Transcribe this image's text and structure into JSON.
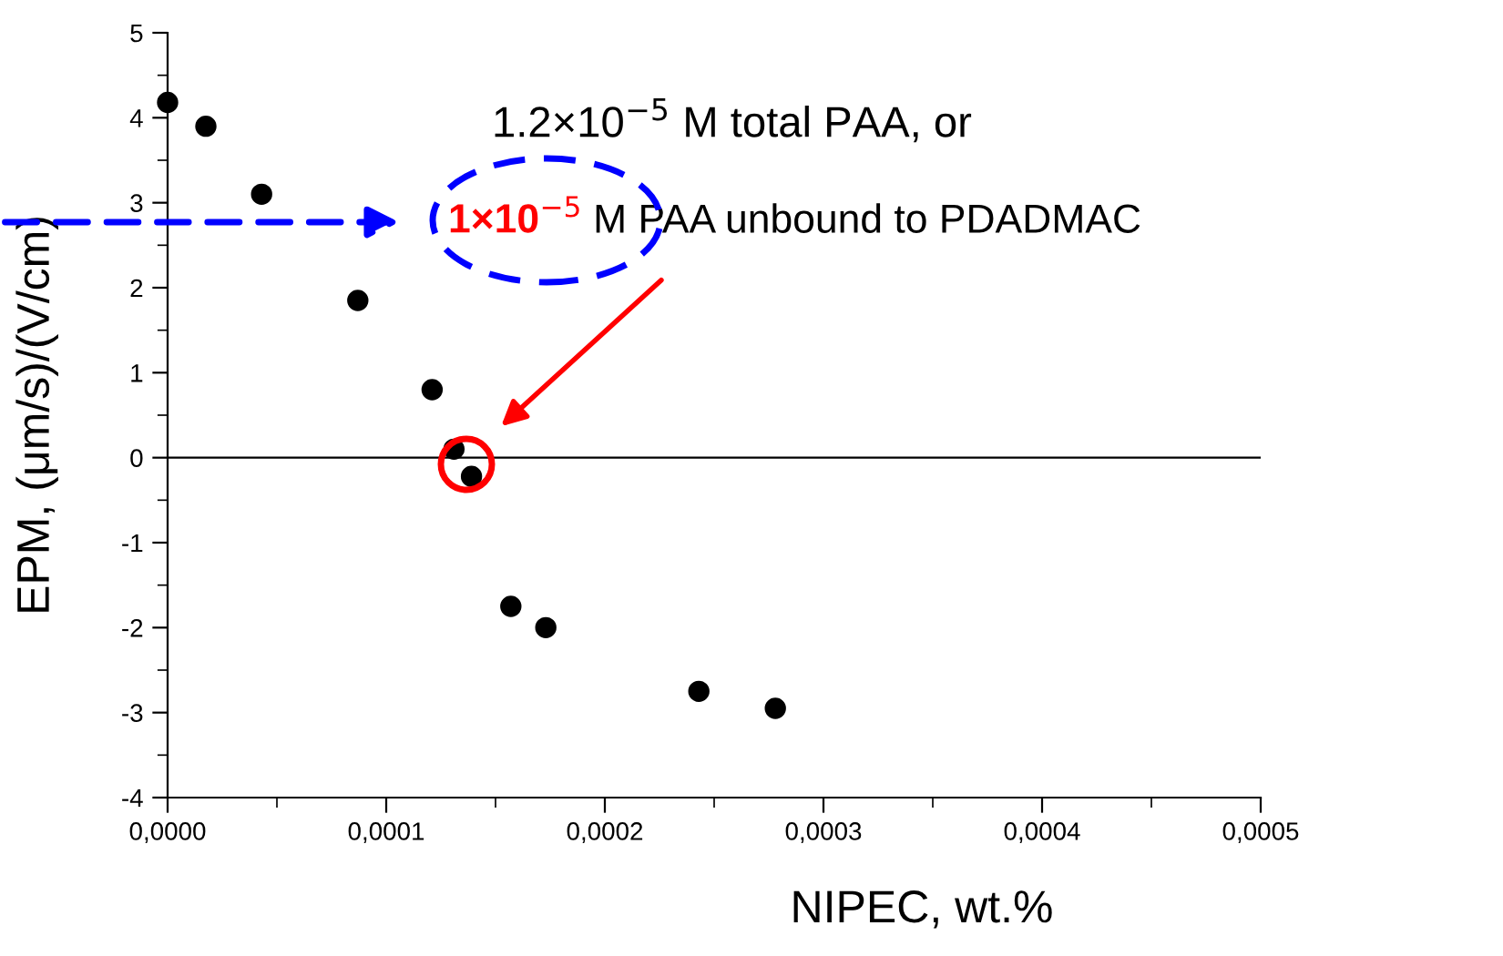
{
  "chart_data": {
    "type": "scatter",
    "xlabel": "NIPEC, wt.%",
    "ylabel": "EPM, (μm/s)/(V/cm)",
    "x": [
      0,
      1.75e-05,
      4.3e-05,
      8.7e-05,
      0.000121,
      0.000131,
      0.000139,
      0.000157,
      0.000173,
      0.000243,
      0.000278
    ],
    "series": [
      {
        "color": "#000000",
        "values": [
          4.18,
          3.9,
          3.1,
          1.85,
          0.8,
          0.1,
          -0.22,
          -1.75,
          -2.0,
          -2.75,
          -2.95
        ]
      }
    ],
    "marker": "circle",
    "xlim": [
      0,
      0.0005
    ],
    "ylim": [
      -4,
      5
    ],
    "xticks": [
      {
        "value": 0,
        "label": "0,0000"
      },
      {
        "value": 0.0001,
        "label": "0,0001"
      },
      {
        "value": 0.0002,
        "label": "0,0002"
      },
      {
        "value": 0.0003,
        "label": "0,0003"
      },
      {
        "value": 0.0004,
        "label": "0,0004"
      },
      {
        "value": 0.0005,
        "label": "0,0005"
      }
    ],
    "yticks": [
      -4,
      -3,
      -2,
      -1,
      0,
      1,
      2,
      3,
      4,
      5
    ],
    "ref_lines": [
      {
        "axis": "y",
        "value": 0,
        "color": "#000000"
      }
    ],
    "annotations": [
      "1.2×10$^{−5}$ M total PAA, or",
      "1×10$^{−5}$",
      "M PAA unbound to PDADMAC"
    ],
    "grid": false,
    "legend": false
  }
}
